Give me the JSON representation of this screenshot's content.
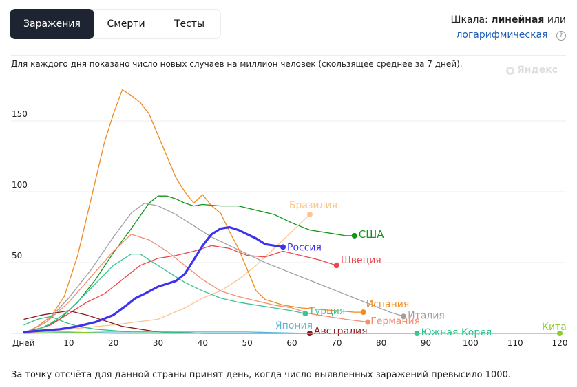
{
  "tabs": [
    {
      "label": "Заражения",
      "active": true
    },
    {
      "label": "Смерти",
      "active": false
    },
    {
      "label": "Тесты",
      "active": false
    }
  ],
  "scale": {
    "prefix": "Шкала:",
    "linear": "линейная",
    "or": "или",
    "log": "логарифмическая",
    "help": "?"
  },
  "description": "Для каждого дня показано число новых случаев на миллион человек (скользящее среднее за 7 дней).",
  "brand": "Яндекс",
  "footnote": "За точку отсчёта для данной страны принят день, когда число выявленных заражений превысило 1000.",
  "chart_data": {
    "type": "line",
    "title": "",
    "xlabel": "Дней",
    "ylabel": "",
    "xlim": [
      0,
      120
    ],
    "ylim": [
      0,
      180
    ],
    "x_ticks": [
      "10",
      "20",
      "30",
      "40",
      "50",
      "60",
      "70",
      "80",
      "90",
      "100",
      "110",
      "120"
    ],
    "y_ticks": [
      "50",
      "100",
      "150"
    ],
    "grid": "horizontal",
    "series": [
      {
        "name": "Россия",
        "color": "#3d33ee",
        "highlight": true,
        "x": [
          0,
          4,
          8,
          12,
          16,
          20,
          23,
          25,
          27,
          30,
          32,
          34,
          36,
          38,
          40,
          42,
          44,
          46,
          48,
          50,
          52,
          54,
          56,
          58
        ],
        "y": [
          1,
          2,
          3,
          5,
          8,
          13,
          20,
          25,
          28,
          33,
          35,
          37,
          42,
          52,
          62,
          70,
          74,
          75,
          73,
          70,
          67,
          63,
          62,
          61
        ]
      },
      {
        "name": "США",
        "color": "#129517",
        "x": [
          0,
          4,
          8,
          12,
          16,
          20,
          24,
          26,
          28,
          30,
          32,
          34,
          36,
          38,
          40,
          44,
          48,
          52,
          56,
          60,
          64,
          68,
          72,
          74
        ],
        "y": [
          1,
          4,
          10,
          22,
          38,
          57,
          74,
          83,
          92,
          97,
          97,
          95,
          92,
          90,
          91,
          90,
          90,
          87,
          84,
          78,
          73,
          71,
          69,
          69
        ]
      },
      {
        "name": "Бразилия",
        "color": "#fbc58c",
        "x": [
          0,
          10,
          20,
          30,
          36,
          40,
          44,
          48,
          52,
          56,
          60,
          64
        ],
        "y": [
          0,
          3,
          6,
          10,
          18,
          25,
          30,
          38,
          48,
          60,
          72,
          84
        ]
      },
      {
        "name": "Швеция",
        "color": "#e9474d",
        "x": [
          0,
          6,
          10,
          14,
          18,
          22,
          26,
          30,
          34,
          38,
          42,
          46,
          50,
          54,
          58,
          62,
          66,
          70
        ],
        "y": [
          0,
          6,
          14,
          22,
          28,
          38,
          48,
          53,
          55,
          58,
          62,
          60,
          55,
          54,
          58,
          55,
          52,
          48
        ]
      },
      {
        "name": "Испания",
        "color": "#f18a1f",
        "x": [
          0,
          3,
          6,
          9,
          12,
          15,
          18,
          20,
          22,
          24,
          26,
          28,
          30,
          32,
          34,
          36,
          38,
          40,
          42,
          44,
          46,
          48,
          50,
          52,
          54,
          58,
          62,
          66,
          70,
          74,
          76
        ],
        "y": [
          0,
          5,
          12,
          26,
          55,
          95,
          135,
          155,
          172,
          168,
          163,
          155,
          140,
          125,
          110,
          100,
          92,
          98,
          90,
          85,
          72,
          60,
          45,
          30,
          24,
          20,
          18,
          17,
          16,
          15,
          15
        ]
      },
      {
        "name": "Италия",
        "color": "#a0a0a0",
        "x": [
          0,
          5,
          10,
          15,
          20,
          24,
          27,
          30,
          34,
          38,
          42,
          46,
          50,
          54,
          58,
          62,
          66,
          70,
          74,
          78,
          82,
          85
        ],
        "y": [
          0,
          8,
          25,
          45,
          68,
          85,
          92,
          90,
          84,
          76,
          68,
          62,
          56,
          50,
          45,
          40,
          35,
          30,
          25,
          20,
          15,
          12
        ]
      },
      {
        "name": "Германия",
        "color": "#f28f74",
        "x": [
          0,
          5,
          10,
          15,
          20,
          24,
          28,
          32,
          36,
          40,
          44,
          48,
          52,
          56,
          60,
          64,
          68,
          72,
          77
        ],
        "y": [
          0,
          8,
          22,
          40,
          58,
          70,
          66,
          58,
          48,
          38,
          30,
          26,
          23,
          20,
          18,
          14,
          12,
          10,
          8
        ]
      },
      {
        "name": "Турция",
        "color": "#38c495",
        "x": [
          0,
          5,
          10,
          15,
          20,
          24,
          26,
          28,
          32,
          36,
          40,
          44,
          48,
          52,
          56,
          60,
          63
        ],
        "y": [
          0,
          5,
          16,
          32,
          48,
          56,
          56,
          52,
          44,
          36,
          30,
          25,
          22,
          20,
          18,
          16,
          14
        ]
      },
      {
        "name": "Япония",
        "color": "#5ab5d8",
        "x": [
          0,
          20,
          40,
          50,
          64
        ],
        "y": [
          0,
          1,
          1,
          1,
          0
        ]
      },
      {
        "name": "Австралия",
        "color": "#8a1a1a",
        "x": [
          0,
          4,
          8,
          10,
          14,
          18,
          22,
          26,
          30,
          40,
          64
        ],
        "y": [
          10,
          13,
          15,
          16,
          13,
          9,
          5,
          3,
          1,
          0,
          0
        ]
      },
      {
        "name": "Южная Корея",
        "color": "#2ec28a",
        "x": [
          0,
          3,
          6,
          9,
          12,
          16,
          20,
          24,
          30,
          40,
          60,
          88
        ],
        "y": [
          6,
          10,
          12,
          8,
          5,
          3,
          2,
          1,
          1,
          0,
          0,
          0
        ]
      },
      {
        "name": "Кита",
        "color": "#8ccd29",
        "x": [
          0,
          10,
          20,
          40,
          60,
          90,
          120
        ],
        "y": [
          1,
          1,
          0,
          0,
          0,
          0,
          0
        ]
      }
    ]
  }
}
